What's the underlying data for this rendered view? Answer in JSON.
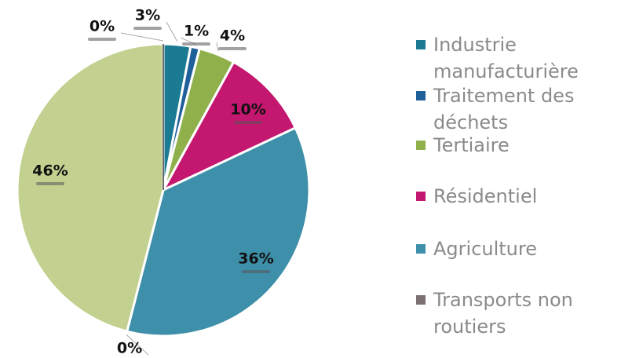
{
  "chart_data": {
    "type": "pie",
    "categories": [
      "Industrie manufacturière",
      "Traitement des déchets",
      "Tertiaire",
      "Résidentiel",
      "Agriculture",
      "Transports non routiers",
      null,
      null
    ],
    "values": [
      3,
      1,
      4,
      10,
      36,
      0,
      46,
      0
    ],
    "value_labels": [
      "3%",
      "1%",
      "4%",
      "10%",
      "36%",
      "0%",
      "46%",
      "0%"
    ],
    "colors": [
      "#1b7b93",
      "#1f5f9a",
      "#8fb04b",
      "#c4176f",
      "#3e8fa9",
      "#7b6f6f",
      "#c2d190",
      "#6b6b6b"
    ]
  }
}
